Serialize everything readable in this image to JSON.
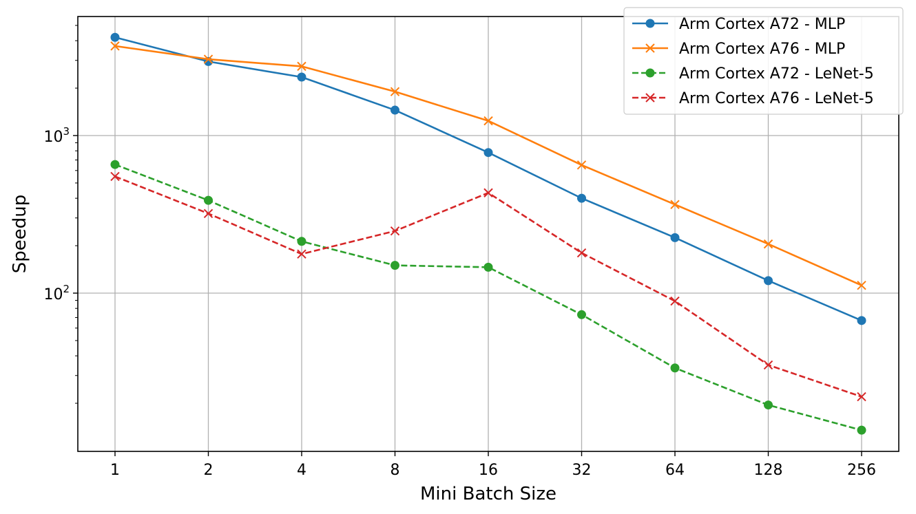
{
  "chart_data": {
    "type": "line",
    "title": "",
    "xlabel": "Mini Batch Size",
    "ylabel": "Speedup",
    "x_scale": "log2-categorical",
    "y_scale": "log",
    "categories": [
      "1",
      "2",
      "4",
      "8",
      "16",
      "32",
      "64",
      "128",
      "256"
    ],
    "yticks": [
      {
        "value": 100,
        "base": "10",
        "exp": "2"
      },
      {
        "value": 1000,
        "base": "10",
        "exp": "3"
      }
    ],
    "ylim": [
      12,
      5500
    ],
    "grid": true,
    "legend_position": "top-right",
    "series": [
      {
        "name": "Arm Cortex A72 - MLP",
        "color": "#1f77b4",
        "marker": "circle",
        "dash": "solid",
        "values": [
          4200,
          2950,
          2350,
          1450,
          780,
          400,
          225,
          120,
          67
        ]
      },
      {
        "name": "Arm Cortex A76 - MLP",
        "color": "#ff7f0e",
        "marker": "x",
        "dash": "solid",
        "values": [
          3700,
          3050,
          2750,
          1900,
          1240,
          650,
          365,
          205,
          112
        ]
      },
      {
        "name": "Arm Cortex A72 - LeNet-5",
        "color": "#2ca02c",
        "marker": "circle",
        "dash": "dashed",
        "values": [
          655,
          388,
          213,
          150,
          146,
          73,
          33.5,
          19.5,
          13.5
        ]
      },
      {
        "name": "Arm Cortex A76 - LeNet-5",
        "color": "#d62728",
        "marker": "x",
        "dash": "dashed",
        "values": [
          550,
          320,
          177,
          248,
          433,
          180,
          89,
          35,
          22
        ]
      }
    ]
  }
}
